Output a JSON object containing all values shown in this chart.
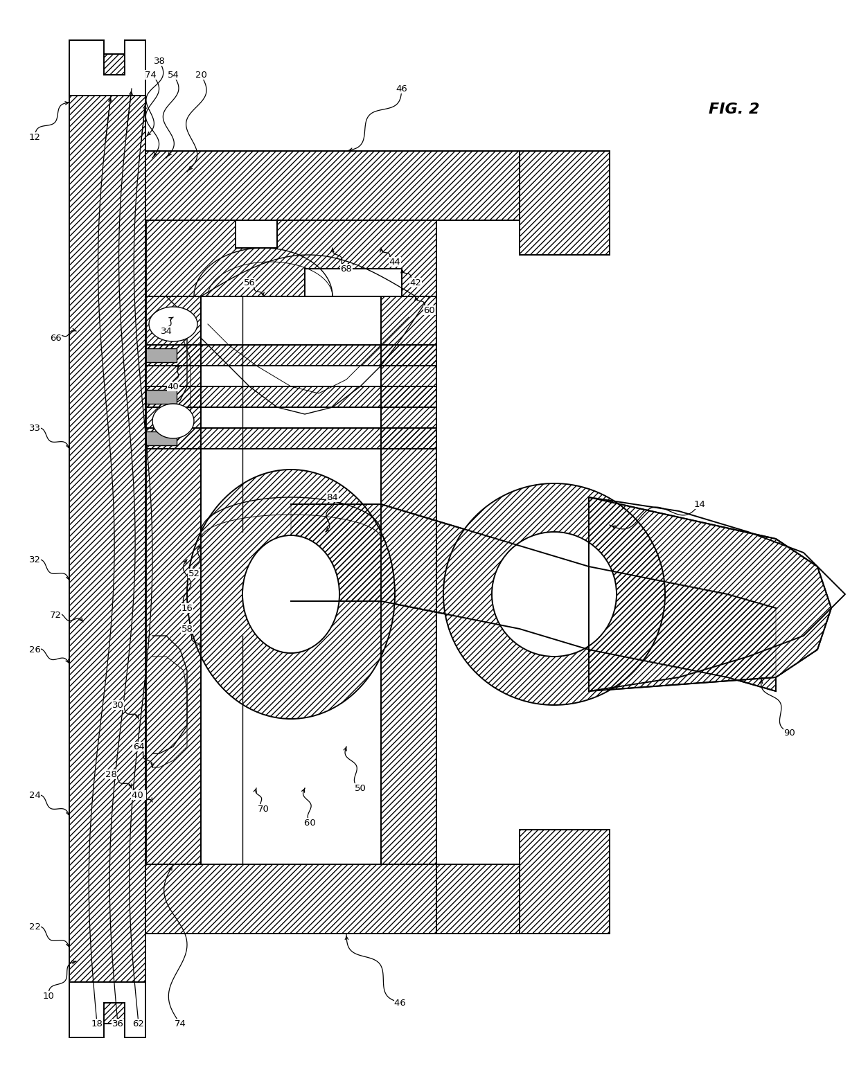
{
  "fig_label": "FIG. 2",
  "bg_color": "#ffffff",
  "line_color": "#000000",
  "fig_width": 12.4,
  "fig_height": 15.58,
  "dpi": 100
}
